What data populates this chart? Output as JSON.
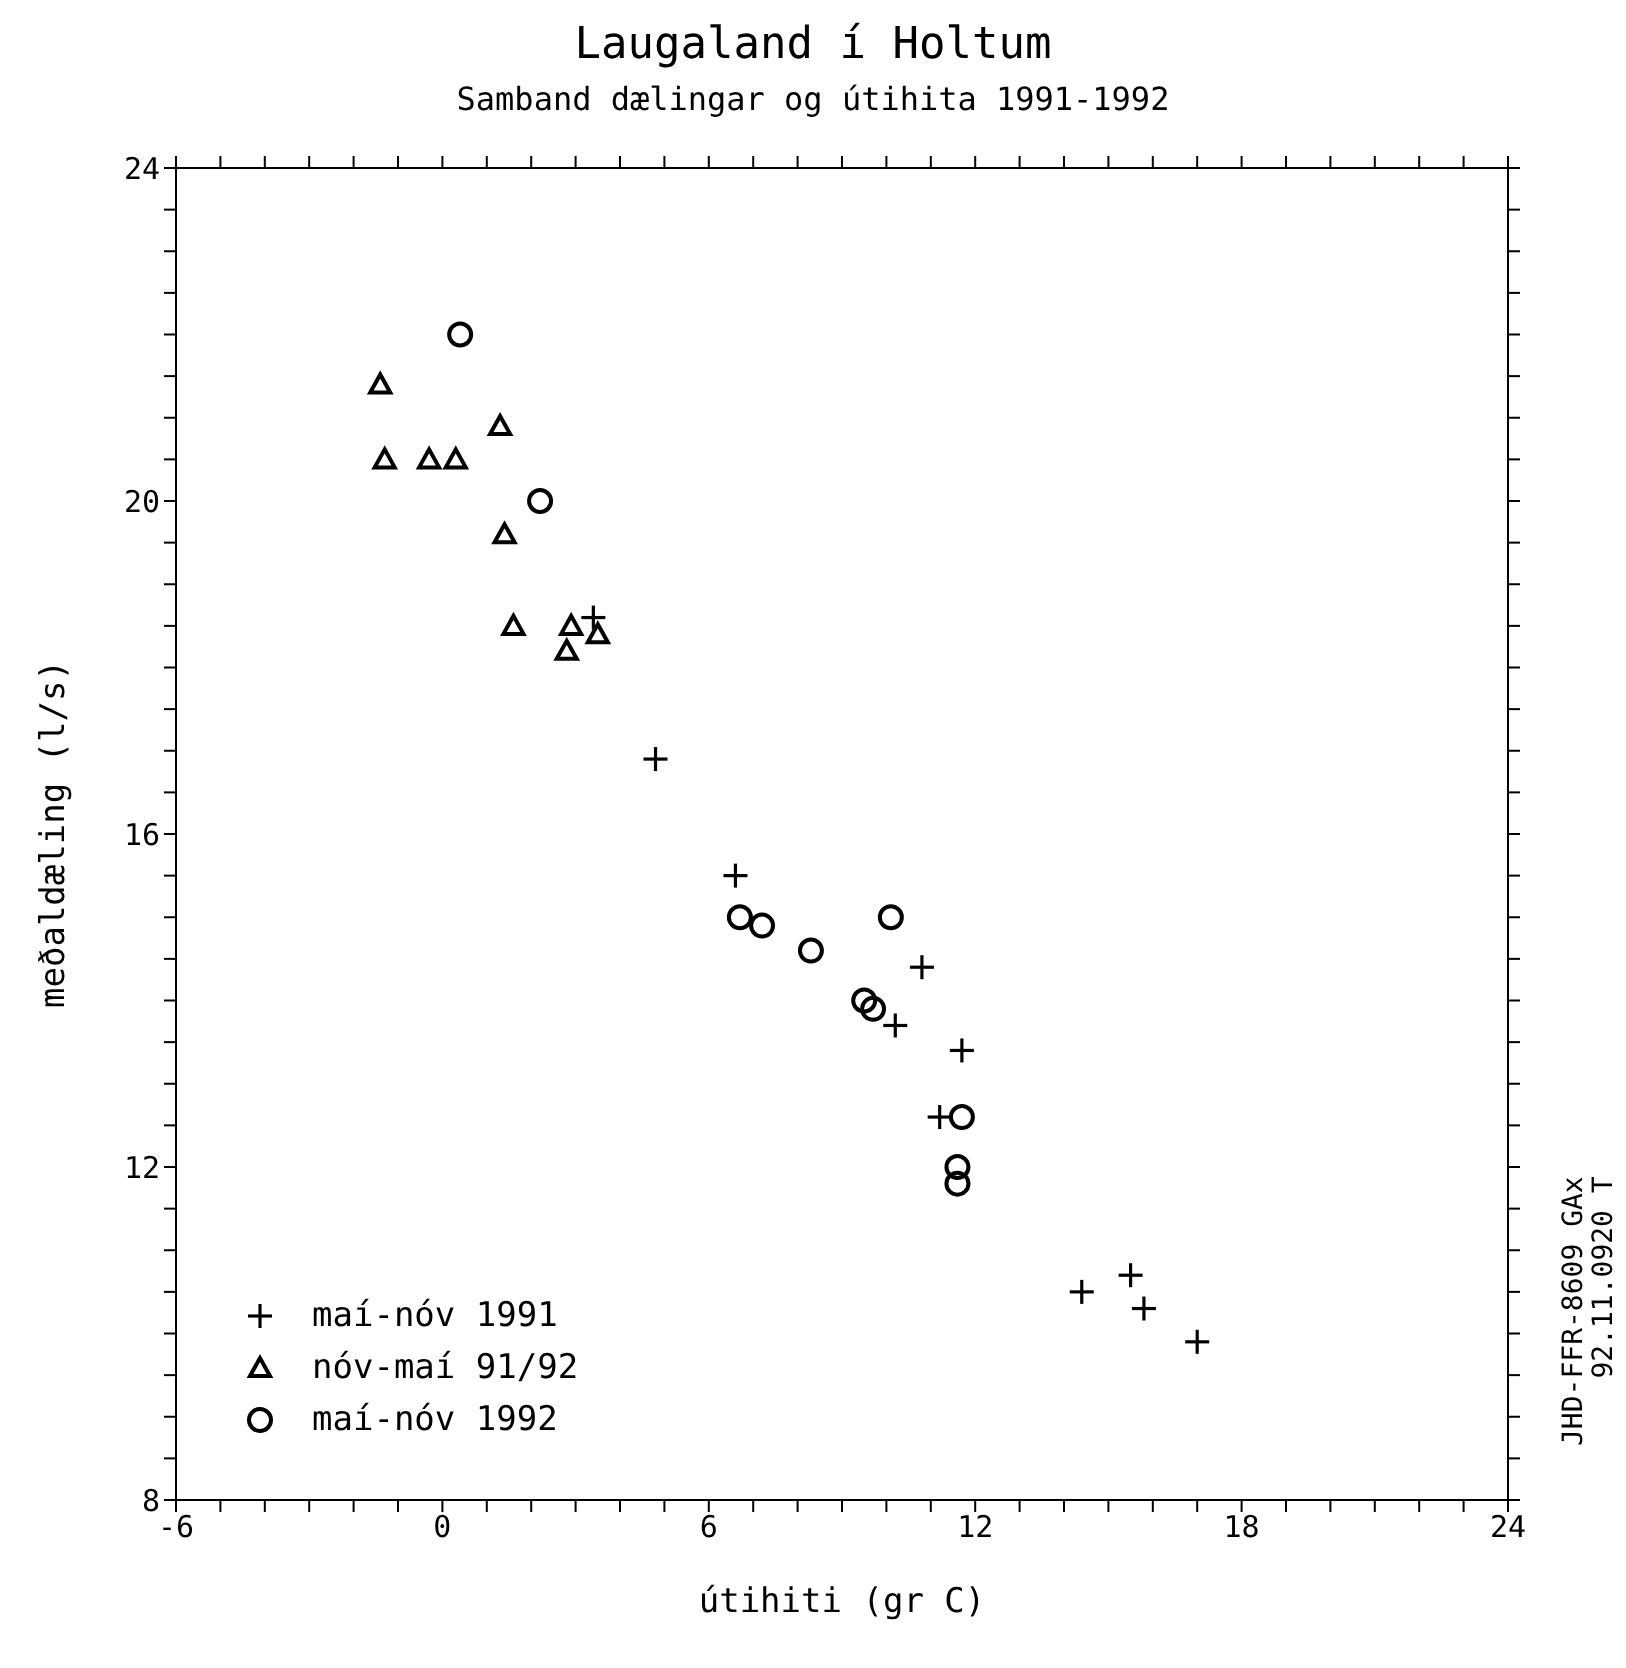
{
  "chart_data": {
    "type": "scatter",
    "title": "Laugaland í Holtum",
    "subtitle": "Samband dælingar og útihita 1991-1992",
    "xlabel": "útihiti (gr C)",
    "ylabel": "meðaldæling (l/s)",
    "annotations": [
      "JHD-FFR-8609 GAx",
      "92.11.0920 T"
    ],
    "xlim": [
      -6,
      24
    ],
    "xticks": [
      -6,
      {
        "value": -5,
        "label": null
      },
      {
        "value": -4,
        "label": null
      },
      {
        "value": -3,
        "label": null
      },
      {
        "value": -2,
        "label": null
      },
      {
        "value": -1,
        "label": null
      },
      0,
      {
        "value": 1,
        "label": null
      },
      {
        "value": 2,
        "label": null
      },
      {
        "value": 3,
        "label": null
      },
      {
        "value": 4,
        "label": null
      },
      {
        "value": 5,
        "label": null
      },
      6,
      {
        "value": 7,
        "label": null
      },
      {
        "value": 8,
        "label": null
      },
      {
        "value": 9,
        "label": null
      },
      {
        "value": 10,
        "label": null
      },
      {
        "value": 11,
        "label": null
      },
      12,
      {
        "value": 13,
        "label": null
      },
      {
        "value": 14,
        "label": null
      },
      {
        "value": 15,
        "label": null
      },
      {
        "value": 16,
        "label": null
      },
      {
        "value": 17,
        "label": null
      },
      18,
      {
        "value": 19,
        "label": null
      },
      {
        "value": 20,
        "label": null
      },
      {
        "value": 21,
        "label": null
      },
      {
        "value": 22,
        "label": null
      },
      {
        "value": 23,
        "label": null
      },
      24
    ],
    "ylim": [
      8,
      24
    ],
    "yticks": [
      8,
      {
        "value": 8.5,
        "label": null
      },
      {
        "value": 9,
        "label": null
      },
      {
        "value": 9.5,
        "label": null
      },
      {
        "value": 10,
        "label": null
      },
      {
        "value": 10.5,
        "label": null
      },
      {
        "value": 11,
        "label": null
      },
      {
        "value": 11.5,
        "label": null
      },
      12,
      {
        "value": 12.5,
        "label": null
      },
      {
        "value": 13,
        "label": null
      },
      {
        "value": 13.5,
        "label": null
      },
      {
        "value": 14,
        "label": null
      },
      {
        "value": 14.5,
        "label": null
      },
      {
        "value": 15,
        "label": null
      },
      {
        "value": 15.5,
        "label": null
      },
      16,
      {
        "value": 16.5,
        "label": null
      },
      {
        "value": 17,
        "label": null
      },
      {
        "value": 17.5,
        "label": null
      },
      {
        "value": 18,
        "label": null
      },
      {
        "value": 18.5,
        "label": null
      },
      {
        "value": 19,
        "label": null
      },
      {
        "value": 19.5,
        "label": null
      },
      20,
      {
        "value": 20.5,
        "label": null
      },
      {
        "value": 21,
        "label": null
      },
      {
        "value": 21.5,
        "label": null
      },
      {
        "value": 22,
        "label": null
      },
      {
        "value": 22.5,
        "label": null
      },
      {
        "value": 23,
        "label": null
      },
      {
        "value": 23.5,
        "label": null
      },
      24
    ],
    "grid": false,
    "legend": "bottom left",
    "series": [
      {
        "name": "maí-nóv 1991",
        "color": "#000000",
        "marker": "cross",
        "x": [
          3.4,
          4.8,
          6.6,
          10.8,
          10.2,
          11.7,
          11.2,
          14.4,
          15.5,
          15.8,
          17.0
        ],
        "values": [
          18.6,
          16.9,
          15.5,
          14.4,
          13.7,
          13.4,
          12.6,
          10.5,
          10.7,
          10.3,
          9.9
        ]
      },
      {
        "name": "nóv-maí 91/92",
        "color": "#000000",
        "marker": "triangle",
        "x": [
          -1.4,
          -1.3,
          -0.3,
          0.3,
          1.3,
          1.4,
          1.6,
          2.9,
          2.8,
          3.5
        ],
        "values": [
          21.4,
          20.5,
          20.5,
          20.5,
          20.9,
          19.6,
          18.5,
          18.5,
          18.2,
          18.4
        ]
      },
      {
        "name": "maí-nóv 1992",
        "color": "#000000",
        "marker": "circle",
        "x": [
          0.4,
          2.2,
          6.7,
          7.2,
          8.3,
          10.1,
          9.5,
          9.7,
          11.7,
          11.6,
          11.6
        ],
        "values": [
          22.0,
          20.0,
          15.0,
          14.9,
          14.6,
          15.0,
          14.0,
          13.9,
          12.6,
          12.0,
          11.8
        ]
      }
    ]
  }
}
